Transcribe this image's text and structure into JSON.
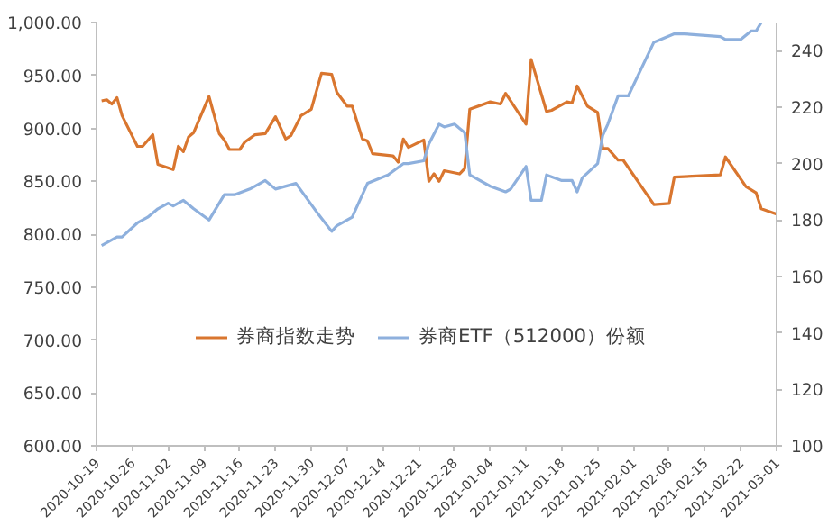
{
  "chart_data": {
    "type": "line",
    "xlim": [
      "2020-10-19",
      "2021-03-01"
    ],
    "xticks": [
      "2020-10-19",
      "2020-10-26",
      "2020-11-02",
      "2020-11-09",
      "2020-11-16",
      "2020-11-23",
      "2020-11-30",
      "2020-12-07",
      "2020-12-14",
      "2020-12-21",
      "2020-12-28",
      "2021-01-04",
      "2021-01-11",
      "2021-01-18",
      "2021-01-25",
      "2021-02-01",
      "2021-02-08",
      "2021-02-15",
      "2021-02-22",
      "2021-03-01"
    ],
    "ylim": [
      600,
      1000
    ],
    "yticks": [
      {
        "value": 600,
        "label": "600.00"
      },
      {
        "value": 650,
        "label": "650.00"
      },
      {
        "value": 700,
        "label": "700.00"
      },
      {
        "value": 750,
        "label": "750.00"
      },
      {
        "value": 800,
        "label": "800.00"
      },
      {
        "value": 850,
        "label": "850.00"
      },
      {
        "value": 900,
        "label": "900.00"
      },
      {
        "value": 950,
        "label": "950.00"
      },
      {
        "value": 1000,
        "label": "1,000.00"
      }
    ],
    "y2lim": [
      100,
      250
    ],
    "y2ticks": [
      100,
      120,
      140,
      160,
      180,
      200,
      220,
      240
    ],
    "grid": false,
    "legend": "bottom",
    "series": [
      {
        "name": "券商指数走势",
        "color": "#d9762f",
        "x": [
          "2020-10-20",
          "2020-10-21",
          "2020-10-22",
          "2020-10-23",
          "2020-10-24",
          "2020-10-27",
          "2020-10-28",
          "2020-10-30",
          "2020-10-31",
          "2020-11-03",
          "2020-11-04",
          "2020-11-05",
          "2020-11-06",
          "2020-11-07",
          "2020-11-10",
          "2020-11-12",
          "2020-11-13",
          "2020-11-14",
          "2020-11-16",
          "2020-11-17",
          "2020-11-19",
          "2020-11-21",
          "2020-11-23",
          "2020-11-25",
          "2020-11-26",
          "2020-11-28",
          "2020-11-30",
          "2020-12-02",
          "2020-12-04",
          "2020-12-05",
          "2020-12-07",
          "2020-12-08",
          "2020-12-10",
          "2020-12-11",
          "2020-12-12",
          "2020-12-16",
          "2020-12-17",
          "2020-12-18",
          "2020-12-19",
          "2020-12-22",
          "2020-12-23",
          "2020-12-24",
          "2020-12-25",
          "2020-12-26",
          "2020-12-29",
          "2020-12-30",
          "2020-12-31",
          "2021-01-04",
          "2021-01-06",
          "2021-01-07",
          "2021-01-11",
          "2021-01-12",
          "2021-01-15",
          "2021-01-16",
          "2021-01-19",
          "2021-01-20",
          "2021-01-21",
          "2021-01-23",
          "2021-01-25",
          "2021-01-26",
          "2021-01-27",
          "2021-01-29",
          "2021-01-30",
          "2021-02-05",
          "2021-02-08",
          "2021-02-09",
          "2021-02-18",
          "2021-02-19",
          "2021-02-23",
          "2021-02-25",
          "2021-02-26",
          "2021-03-01"
        ],
        "values": [
          926,
          927,
          923,
          929,
          912,
          883,
          883,
          894,
          866,
          861,
          883,
          878,
          892,
          896,
          930,
          895,
          889,
          880,
          880,
          887,
          894,
          895,
          911,
          890,
          893,
          912,
          918,
          952,
          951,
          934,
          921,
          921,
          890,
          888,
          876,
          874,
          868,
          890,
          882,
          889,
          850,
          857,
          850,
          860,
          857,
          862,
          918,
          925,
          923,
          933,
          904,
          965,
          916,
          917,
          925,
          924,
          940,
          921,
          915,
          881,
          881,
          870,
          870,
          828,
          829,
          854,
          856,
          873,
          845,
          839,
          824,
          819
        ]
      },
      {
        "name": "券商ETF（512000）份额",
        "color": "#8eb0dd",
        "axis": "y2",
        "x": [
          "2020-10-20",
          "2020-10-23",
          "2020-10-24",
          "2020-10-27",
          "2020-10-29",
          "2020-10-31",
          "2020-11-02",
          "2020-11-03",
          "2020-11-05",
          "2020-11-07",
          "2020-11-10",
          "2020-11-13",
          "2020-11-15",
          "2020-11-18",
          "2020-11-21",
          "2020-11-23",
          "2020-11-27",
          "2020-12-01",
          "2020-12-04",
          "2020-12-05",
          "2020-12-08",
          "2020-12-11",
          "2020-12-15",
          "2020-12-18",
          "2020-12-19",
          "2020-12-22",
          "2020-12-23",
          "2020-12-25",
          "2020-12-26",
          "2020-12-28",
          "2020-12-30",
          "2020-12-31",
          "2021-01-04",
          "2021-01-07",
          "2021-01-08",
          "2021-01-11",
          "2021-01-12",
          "2021-01-14",
          "2021-01-15",
          "2021-01-18",
          "2021-01-20",
          "2021-01-21",
          "2021-01-22",
          "2021-01-25",
          "2021-01-26",
          "2021-01-27",
          "2021-01-29",
          "2021-01-31",
          "2021-02-05",
          "2021-02-09",
          "2021-02-10",
          "2021-02-11",
          "2021-02-18",
          "2021-02-19",
          "2021-02-22",
          "2021-02-24",
          "2021-02-25",
          "2021-02-26"
        ],
        "values": [
          171,
          174,
          174,
          179,
          181,
          184,
          186,
          185,
          187,
          184,
          180,
          189,
          189,
          191,
          194,
          191,
          193,
          183,
          176,
          178,
          181,
          193,
          196,
          200,
          200,
          201,
          207,
          214,
          213,
          214,
          211,
          196,
          192,
          190,
          191,
          199,
          187,
          187,
          196,
          194,
          194,
          190,
          195,
          200,
          210,
          214,
          224,
          224,
          243,
          246,
          246,
          246,
          245,
          244,
          244,
          247,
          247,
          250
        ]
      }
    ]
  }
}
